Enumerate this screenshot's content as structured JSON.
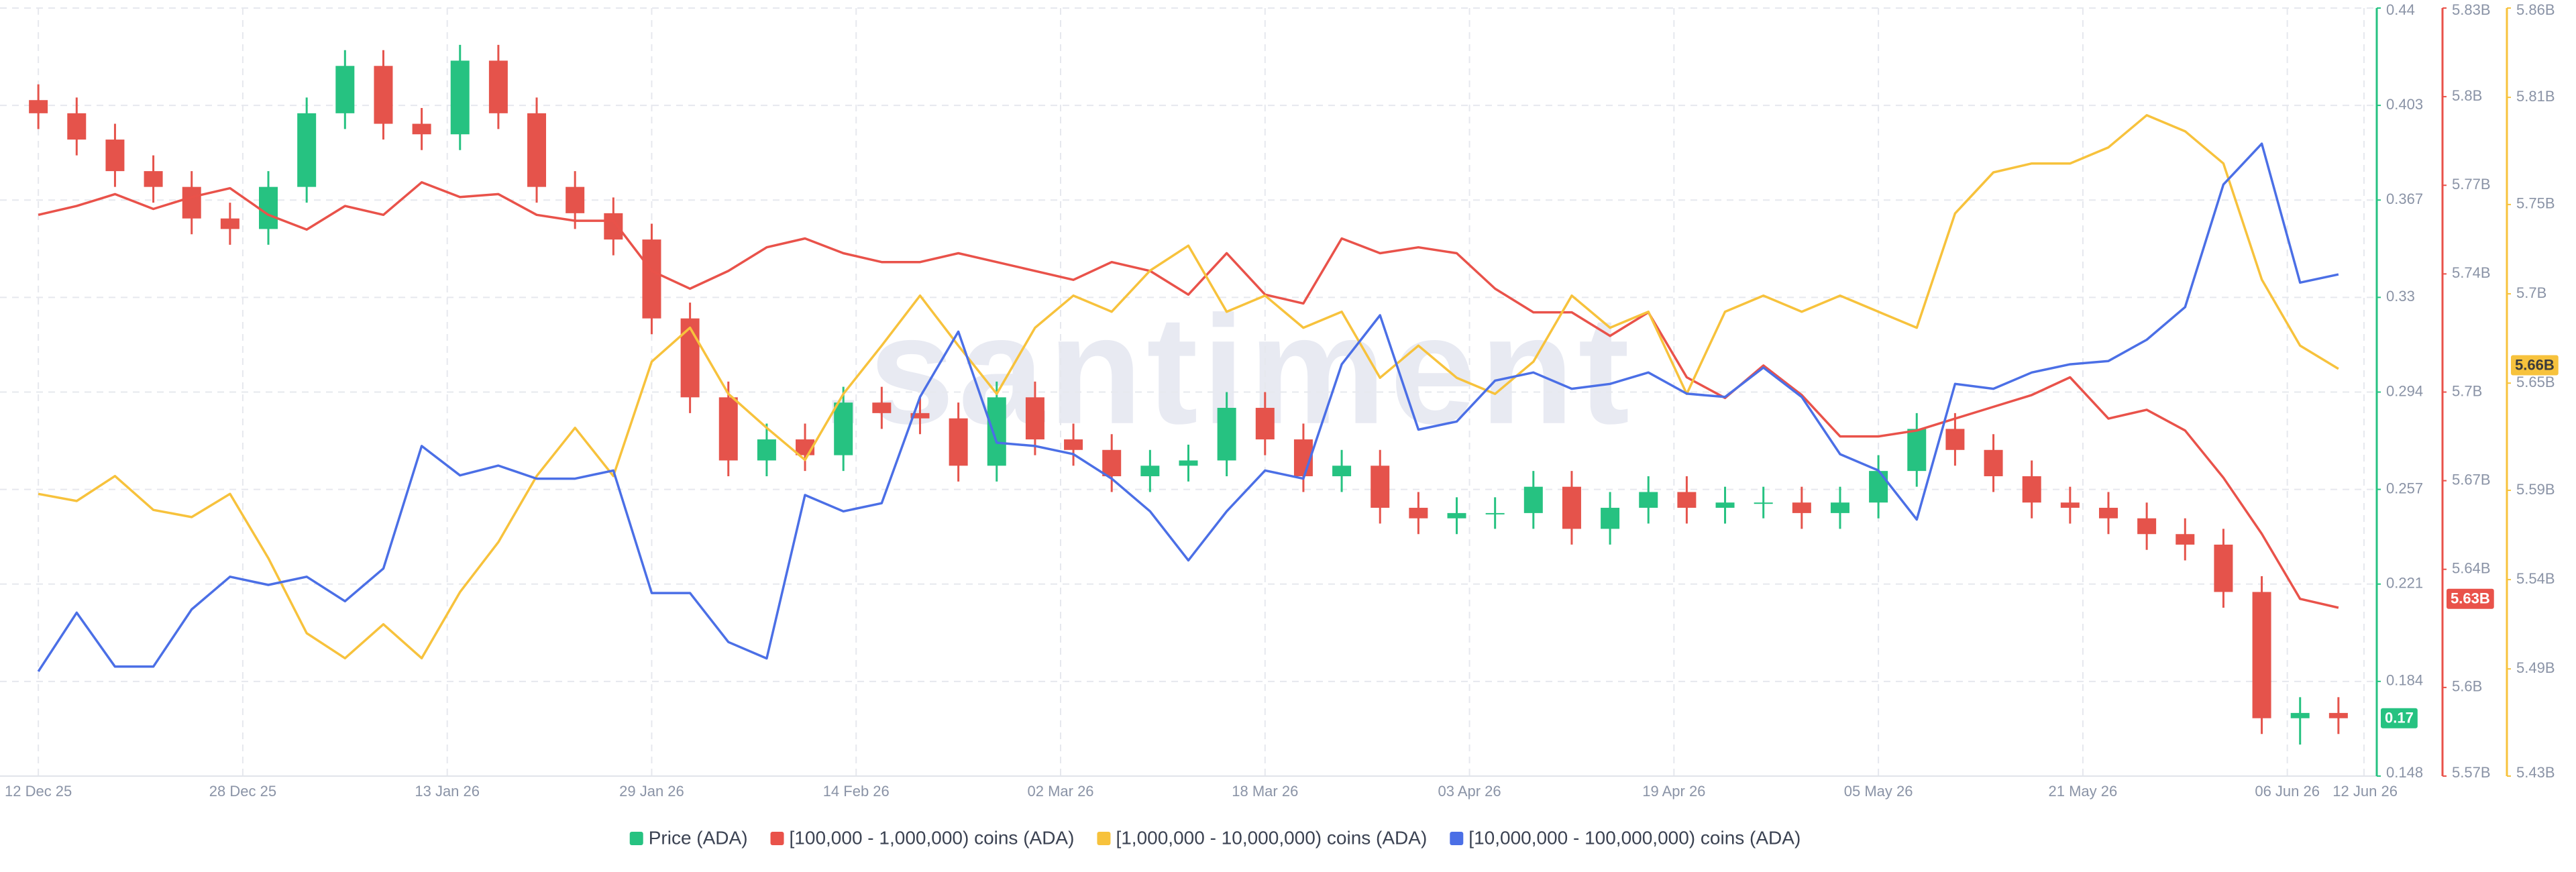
{
  "chart_data": {
    "type": "candlestick",
    "watermark": ".santiment",
    "x": [
      "2025-12-12",
      "2025-12-15",
      "2025-12-18",
      "2025-12-21",
      "2025-12-24",
      "2025-12-27",
      "2025-12-30",
      "2026-01-02",
      "2026-01-05",
      "2026-01-08",
      "2026-01-11",
      "2026-01-14",
      "2026-01-17",
      "2026-01-20",
      "2026-01-23",
      "2026-01-26",
      "2026-01-29",
      "2026-02-01",
      "2026-02-04",
      "2026-02-07",
      "2026-02-10",
      "2026-02-13",
      "2026-02-16",
      "2026-02-19",
      "2026-02-22",
      "2026-02-25",
      "2026-02-28",
      "2026-03-03",
      "2026-03-06",
      "2026-03-09",
      "2026-03-12",
      "2026-03-15",
      "2026-03-18",
      "2026-03-21",
      "2026-03-24",
      "2026-03-27",
      "2026-03-30",
      "2026-04-02",
      "2026-04-05",
      "2026-04-08",
      "2026-04-11",
      "2026-04-14",
      "2026-04-17",
      "2026-04-20",
      "2026-04-23",
      "2026-04-26",
      "2026-04-29",
      "2026-05-02",
      "2026-05-05",
      "2026-05-08",
      "2026-05-11",
      "2026-05-14",
      "2026-05-17",
      "2026-05-20",
      "2026-05-23",
      "2026-05-26",
      "2026-05-29",
      "2026-06-01",
      "2026-06-04",
      "2026-06-07",
      "2026-06-10"
    ],
    "xlim": [
      "2025-12-09",
      "2026-06-13"
    ],
    "xticks": [
      {
        "value": "2025-12-12",
        "label": "12 Dec 25"
      },
      {
        "value": "2025-12-28",
        "label": "28 Dec 25"
      },
      {
        "value": "2026-01-13",
        "label": "13 Jan 26"
      },
      {
        "value": "2026-01-29",
        "label": "29 Jan 26"
      },
      {
        "value": "2026-02-14",
        "label": "14 Feb 26"
      },
      {
        "value": "2026-03-02",
        "label": "02 Mar 26"
      },
      {
        "value": "2026-03-18",
        "label": "18 Mar 26"
      },
      {
        "value": "2026-04-03",
        "label": "03 Apr 26"
      },
      {
        "value": "2026-04-19",
        "label": "19 Apr 26"
      },
      {
        "value": "2026-05-05",
        "label": "05 May 26"
      },
      {
        "value": "2026-05-21",
        "label": "21 May 26"
      },
      {
        "value": "2026-06-06",
        "label": "06 Jun 26"
      },
      {
        "value": "2026-06-12",
        "label": "12 Jun 26"
      }
    ],
    "ylim": [
      0.148,
      0.44
    ],
    "yticks": [
      0.148,
      0.184,
      0.221,
      0.257,
      0.294,
      0.33,
      0.367,
      0.403,
      0.44
    ],
    "y2lim": [
      5570000000,
      5830000000
    ],
    "y2ticks": [
      {
        "value": 5570000000,
        "label": "5.57B"
      },
      {
        "value": 5600000000,
        "label": "5.6B"
      },
      {
        "value": 5640000000,
        "label": "5.64B"
      },
      {
        "value": 5670000000,
        "label": "5.67B"
      },
      {
        "value": 5700000000,
        "label": "5.7B"
      },
      {
        "value": 5740000000,
        "label": "5.74B"
      },
      {
        "value": 5770000000,
        "label": "5.77B"
      },
      {
        "value": 5800000000,
        "label": "5.8B"
      },
      {
        "value": 5830000000,
        "label": "5.83B"
      }
    ],
    "y3lim": [
      5430000000,
      5860000000
    ],
    "y3ticks": [
      {
        "value": 5430000000,
        "label": "5.43B"
      },
      {
        "value": 5490000000,
        "label": "5.49B"
      },
      {
        "value": 5540000000,
        "label": "5.54B"
      },
      {
        "value": 5590000000,
        "label": "5.59B"
      },
      {
        "value": 5650000000,
        "label": "5.65B"
      },
      {
        "value": 5700000000,
        "label": "5.7B"
      },
      {
        "value": 5750000000,
        "label": "5.75B"
      },
      {
        "value": 5810000000,
        "label": "5.81B"
      },
      {
        "value": 5860000000,
        "label": "5.86B"
      }
    ],
    "y4lim": [
      12300000000,
      12770000000
    ],
    "grid": true,
    "legend": "bottom",
    "series": [
      {
        "name": "Price (ADA)",
        "type": "candlestick",
        "axis": "y",
        "color": "#26c281",
        "down_color": "#e5534b",
        "last_label": 0.17,
        "open": [
          0.405,
          0.4,
          0.39,
          0.378,
          0.372,
          0.36,
          0.356,
          0.372,
          0.4,
          0.418,
          0.396,
          0.392,
          0.42,
          0.4,
          0.372,
          0.362,
          0.352,
          0.322,
          0.292,
          0.268,
          0.276,
          0.27,
          0.29,
          0.286,
          0.284,
          0.266,
          0.292,
          0.276,
          0.272,
          0.262,
          0.266,
          0.268,
          0.288,
          0.276,
          0.262,
          0.266,
          0.25,
          0.246,
          0.248,
          0.248,
          0.258,
          0.242,
          0.25,
          0.256,
          0.25,
          0.252,
          0.252,
          0.248,
          0.252,
          0.264,
          0.28,
          0.272,
          0.262,
          0.252,
          0.25,
          0.246,
          0.24,
          0.236,
          0.218,
          0.17,
          0.172
        ],
        "high": [
          0.411,
          0.406,
          0.396,
          0.384,
          0.378,
          0.366,
          0.378,
          0.406,
          0.424,
          0.424,
          0.402,
          0.426,
          0.426,
          0.406,
          0.378,
          0.368,
          0.358,
          0.328,
          0.298,
          0.282,
          0.282,
          0.296,
          0.296,
          0.292,
          0.29,
          0.298,
          0.298,
          0.282,
          0.278,
          0.272,
          0.274,
          0.294,
          0.294,
          0.282,
          0.272,
          0.272,
          0.256,
          0.254,
          0.254,
          0.264,
          0.264,
          0.256,
          0.262,
          0.262,
          0.258,
          0.258,
          0.258,
          0.258,
          0.27,
          0.286,
          0.286,
          0.278,
          0.268,
          0.258,
          0.256,
          0.252,
          0.246,
          0.242,
          0.224,
          0.178,
          0.178
        ],
        "low": [
          0.394,
          0.384,
          0.372,
          0.366,
          0.354,
          0.35,
          0.35,
          0.366,
          0.394,
          0.39,
          0.386,
          0.386,
          0.394,
          0.366,
          0.356,
          0.346,
          0.316,
          0.286,
          0.262,
          0.262,
          0.264,
          0.264,
          0.28,
          0.278,
          0.26,
          0.26,
          0.27,
          0.266,
          0.256,
          0.256,
          0.26,
          0.262,
          0.27,
          0.256,
          0.256,
          0.244,
          0.24,
          0.24,
          0.242,
          0.242,
          0.236,
          0.236,
          0.244,
          0.244,
          0.244,
          0.246,
          0.242,
          0.242,
          0.246,
          0.258,
          0.266,
          0.256,
          0.246,
          0.244,
          0.24,
          0.234,
          0.23,
          0.212,
          0.164,
          0.16,
          0.164
        ],
        "close": [
          0.4,
          0.39,
          0.378,
          0.372,
          0.36,
          0.356,
          0.372,
          0.4,
          0.418,
          0.396,
          0.392,
          0.42,
          0.4,
          0.372,
          0.362,
          0.352,
          0.322,
          0.292,
          0.268,
          0.276,
          0.27,
          0.29,
          0.286,
          0.284,
          0.266,
          0.292,
          0.276,
          0.272,
          0.262,
          0.266,
          0.268,
          0.288,
          0.276,
          0.262,
          0.266,
          0.25,
          0.246,
          0.248,
          0.248,
          0.258,
          0.242,
          0.25,
          0.256,
          0.25,
          0.252,
          0.252,
          0.248,
          0.252,
          0.264,
          0.28,
          0.272,
          0.262,
          0.252,
          0.25,
          0.246,
          0.24,
          0.236,
          0.218,
          0.17,
          0.172,
          0.17
        ]
      },
      {
        "name": "[100,000  - 1,000,000) coins (ADA)",
        "type": "line",
        "axis": "y2",
        "color": "#e9524a",
        "last_label": {
          "value": 5630000000,
          "label": "5.63B"
        },
        "values": [
          5760000000,
          5763000000,
          5767000000,
          5762000000,
          5766000000,
          5769000000,
          5760000000,
          5755000000,
          5763000000,
          5760000000,
          5771000000,
          5766000000,
          5767000000,
          5760000000,
          5758000000,
          5758000000,
          5741000000,
          5735000000,
          5741000000,
          5749000000,
          5752000000,
          5747000000,
          5744000000,
          5744000000,
          5747000000,
          5744000000,
          5741000000,
          5738000000,
          5744000000,
          5741000000,
          5733000000,
          5747000000,
          5733000000,
          5730000000,
          5752000000,
          5747000000,
          5749000000,
          5747000000,
          5735000000,
          5727000000,
          5727000000,
          5719000000,
          5727000000,
          5705000000,
          5698000000,
          5709000000,
          5699000000,
          5685000000,
          5685000000,
          5687000000,
          5691000000,
          5695000000,
          5699000000,
          5705000000,
          5691000000,
          5694000000,
          5687000000,
          5671000000,
          5652000000,
          5630000000,
          5627000000
        ]
      },
      {
        "name": "[1,000,000 - 10,000,000) coins (ADA)",
        "type": "line",
        "axis": "y3",
        "color": "#f7c23c",
        "last_label": {
          "value": 5660000000,
          "label": "5.66B"
        },
        "values": [
          5588000000,
          5584000000,
          5598000000,
          5579000000,
          5575000000,
          5588000000,
          5552000000,
          5510000000,
          5496000000,
          5515000000,
          5496000000,
          5533000000,
          5561000000,
          5598000000,
          5625000000,
          5598000000,
          5662000000,
          5681000000,
          5644000000,
          5625000000,
          5607000000,
          5644000000,
          5671000000,
          5699000000,
          5671000000,
          5644000000,
          5681000000,
          5699000000,
          5690000000,
          5713000000,
          5727000000,
          5690000000,
          5699000000,
          5681000000,
          5690000000,
          5653000000,
          5671000000,
          5653000000,
          5644000000,
          5662000000,
          5699000000,
          5681000000,
          5690000000,
          5644000000,
          5690000000,
          5699000000,
          5690000000,
          5699000000,
          5690000000,
          5681000000,
          5745000000,
          5768000000,
          5773000000,
          5773000000,
          5782000000,
          5800000000,
          5791000000,
          5773000000,
          5708000000,
          5671000000,
          5658000000
        ]
      },
      {
        "name": "[10,000,000 - 100,000,000) coins (ADA)",
        "type": "line",
        "axis": "y4",
        "color": "#4b6fe6",
        "values": [
          12364000000,
          12400000000,
          12367000000,
          12367000000,
          12402000000,
          12422000000,
          12417000000,
          12422000000,
          12407000000,
          12427000000,
          12502000000,
          12484000000,
          12490000000,
          12482000000,
          12482000000,
          12487000000,
          12412000000,
          12412000000,
          12382000000,
          12372000000,
          12472000000,
          12462000000,
          12467000000,
          12532000000,
          12572000000,
          12504000000,
          12502000000,
          12497000000,
          12482000000,
          12462000000,
          12432000000,
          12462000000,
          12487000000,
          12482000000,
          12552000000,
          12582000000,
          12512000000,
          12517000000,
          12542000000,
          12547000000,
          12537000000,
          12540000000,
          12547000000,
          12534000000,
          12532000000,
          12550000000,
          12532000000,
          12497000000,
          12487000000,
          12457000000,
          12540000000,
          12537000000,
          12547000000,
          12552000000,
          12554000000,
          12567000000,
          12587000000,
          12662000000,
          12687000000,
          12602000000,
          12607000000
        ]
      }
    ]
  }
}
